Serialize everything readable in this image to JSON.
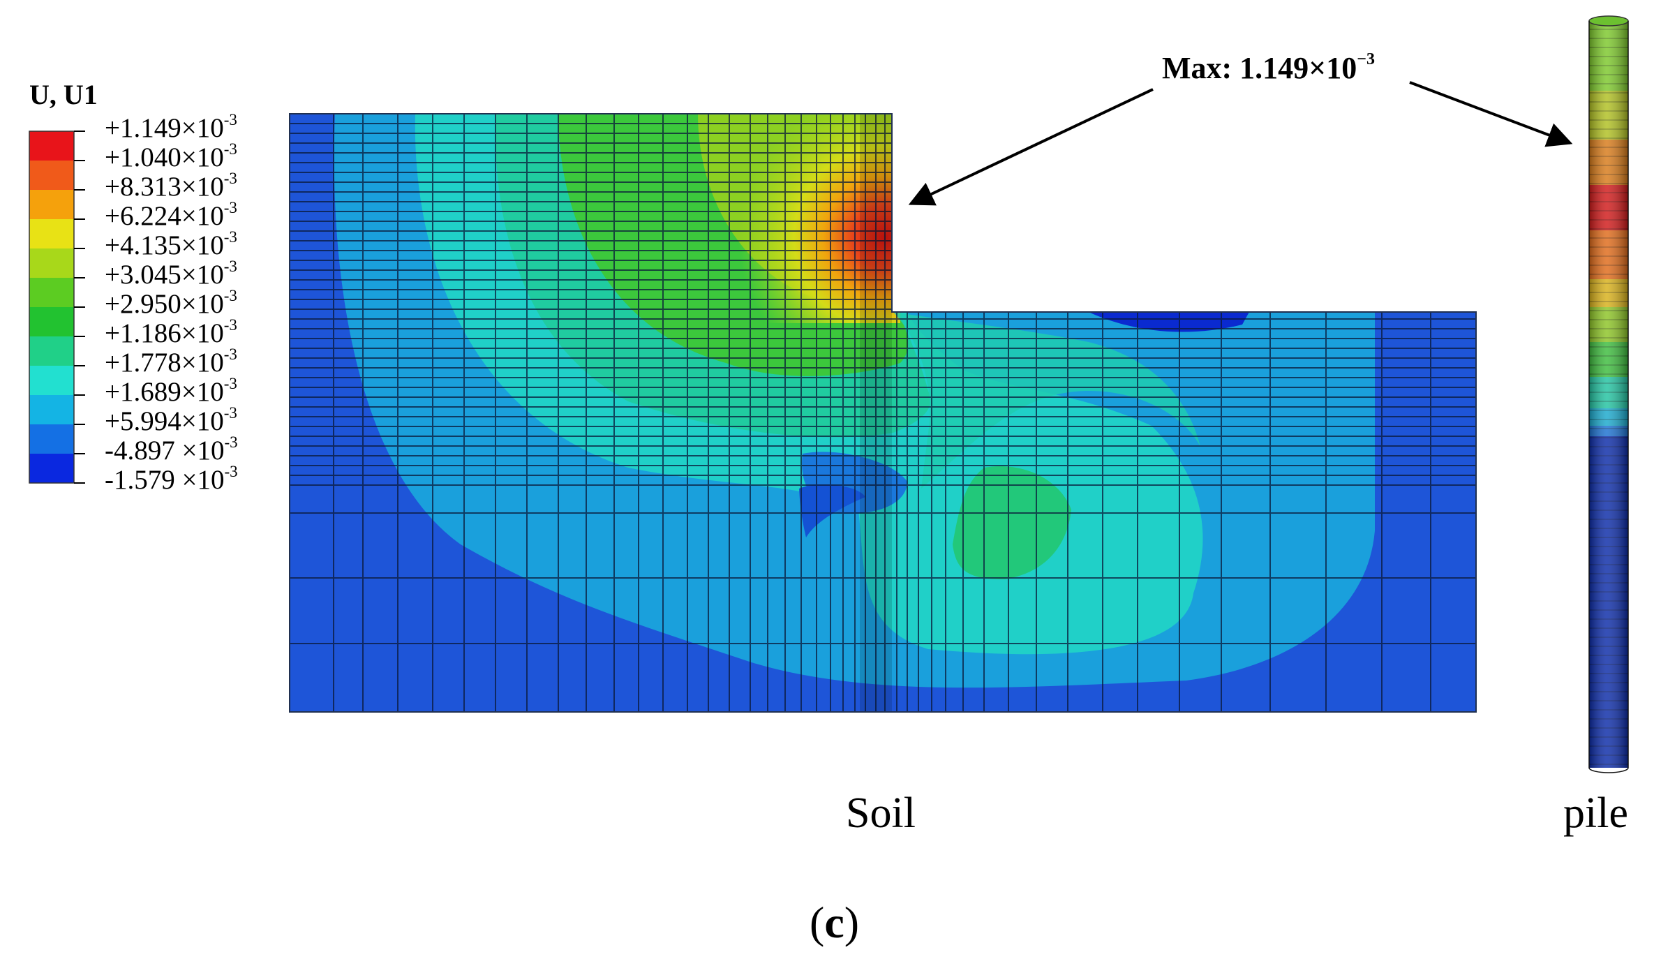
{
  "legend": {
    "title": "U, U1",
    "entries": [
      {
        "mantissa": "+1.149×10",
        "exponent": "-3"
      },
      {
        "mantissa": "+1.040×10",
        "exponent": "-3"
      },
      {
        "mantissa": "+8.313×10",
        "exponent": "-3"
      },
      {
        "mantissa": "+6.224×10",
        "exponent": "-3"
      },
      {
        "mantissa": "+4.135×10",
        "exponent": "-3"
      },
      {
        "mantissa": "+3.045×10",
        "exponent": "-3"
      },
      {
        "mantissa": "+2.950×10",
        "exponent": "-3"
      },
      {
        "mantissa": "+1.186×10",
        "exponent": "-3"
      },
      {
        "mantissa": "+1.778×10",
        "exponent": "-3"
      },
      {
        "mantissa": "+1.689×10",
        "exponent": "-3"
      },
      {
        "mantissa": "+5.994×10",
        "exponent": "-3"
      },
      {
        "mantissa": "-4.897 ×10",
        "exponent": "-3"
      },
      {
        "mantissa": "-1.579 ×10",
        "exponent": "-3"
      }
    ],
    "colors": [
      "#e8141a",
      "#f05a1a",
      "#f5a10c",
      "#e8e215",
      "#a8d81a",
      "#5ccc22",
      "#22c230",
      "#20d088",
      "#22e0d0",
      "#14b4e4",
      "#1470e4",
      "#0a28e0"
    ]
  },
  "annotation": {
    "max_prefix": "Max: 1.149×10",
    "max_exponent": "−3"
  },
  "labels": {
    "soil": "Soil",
    "pile": "pile",
    "caption_open": "(",
    "caption_letter": "c",
    "caption_close": ")"
  }
}
